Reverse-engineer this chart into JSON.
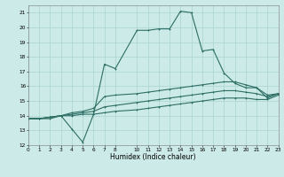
{
  "xlabel": "Humidex (Indice chaleur)",
  "bg_color": "#cceae7",
  "grid_color": "#aad4d0",
  "line_color": "#2d6e65",
  "xlim": [
    0,
    23
  ],
  "ylim": [
    12,
    21.5
  ],
  "xtick_vals": [
    0,
    1,
    2,
    3,
    4,
    5,
    6,
    7,
    8,
    10,
    11,
    12,
    13,
    14,
    15,
    16,
    17,
    18,
    19,
    20,
    21,
    22,
    23
  ],
  "ytick_vals": [
    12,
    13,
    14,
    15,
    16,
    17,
    18,
    19,
    20,
    21
  ],
  "series1": [
    [
      0,
      13.8
    ],
    [
      1,
      13.8
    ],
    [
      2,
      13.8
    ],
    [
      3,
      14.0
    ],
    [
      4,
      13.1
    ],
    [
      5,
      12.2
    ],
    [
      6,
      14.1
    ],
    [
      7,
      17.5
    ],
    [
      8,
      17.2
    ],
    [
      10,
      19.8
    ],
    [
      11,
      19.8
    ],
    [
      12,
      19.9
    ],
    [
      13,
      19.9
    ],
    [
      14,
      21.1
    ],
    [
      15,
      21.0
    ],
    [
      16,
      18.4
    ],
    [
      17,
      18.5
    ],
    [
      18,
      16.9
    ],
    [
      19,
      16.2
    ],
    [
      20,
      15.9
    ],
    [
      21,
      15.9
    ],
    [
      22,
      15.2
    ],
    [
      23,
      15.5
    ]
  ],
  "series2": [
    [
      0,
      13.8
    ],
    [
      1,
      13.8
    ],
    [
      2,
      13.9
    ],
    [
      3,
      14.0
    ],
    [
      4,
      14.2
    ],
    [
      5,
      14.3
    ],
    [
      6,
      14.5
    ],
    [
      7,
      15.3
    ],
    [
      8,
      15.4
    ],
    [
      10,
      15.5
    ],
    [
      11,
      15.6
    ],
    [
      12,
      15.7
    ],
    [
      13,
      15.8
    ],
    [
      14,
      15.9
    ],
    [
      15,
      16.0
    ],
    [
      16,
      16.1
    ],
    [
      17,
      16.2
    ],
    [
      18,
      16.3
    ],
    [
      19,
      16.3
    ],
    [
      20,
      16.1
    ],
    [
      21,
      15.9
    ],
    [
      22,
      15.4
    ],
    [
      23,
      15.5
    ]
  ],
  "series3": [
    [
      0,
      13.8
    ],
    [
      1,
      13.8
    ],
    [
      2,
      13.9
    ],
    [
      3,
      14.0
    ],
    [
      4,
      14.1
    ],
    [
      5,
      14.2
    ],
    [
      6,
      14.3
    ],
    [
      7,
      14.6
    ],
    [
      8,
      14.7
    ],
    [
      10,
      14.9
    ],
    [
      11,
      15.0
    ],
    [
      12,
      15.1
    ],
    [
      13,
      15.2
    ],
    [
      14,
      15.3
    ],
    [
      15,
      15.4
    ],
    [
      16,
      15.5
    ],
    [
      17,
      15.6
    ],
    [
      18,
      15.7
    ],
    [
      19,
      15.7
    ],
    [
      20,
      15.6
    ],
    [
      21,
      15.5
    ],
    [
      22,
      15.3
    ],
    [
      23,
      15.5
    ]
  ],
  "series4": [
    [
      0,
      13.8
    ],
    [
      1,
      13.8
    ],
    [
      2,
      13.9
    ],
    [
      3,
      14.0
    ],
    [
      4,
      14.0
    ],
    [
      5,
      14.1
    ],
    [
      6,
      14.1
    ],
    [
      7,
      14.2
    ],
    [
      8,
      14.3
    ],
    [
      10,
      14.4
    ],
    [
      11,
      14.5
    ],
    [
      12,
      14.6
    ],
    [
      13,
      14.7
    ],
    [
      14,
      14.8
    ],
    [
      15,
      14.9
    ],
    [
      16,
      15.0
    ],
    [
      17,
      15.1
    ],
    [
      18,
      15.2
    ],
    [
      19,
      15.2
    ],
    [
      20,
      15.2
    ],
    [
      21,
      15.1
    ],
    [
      22,
      15.1
    ],
    [
      23,
      15.4
    ]
  ]
}
